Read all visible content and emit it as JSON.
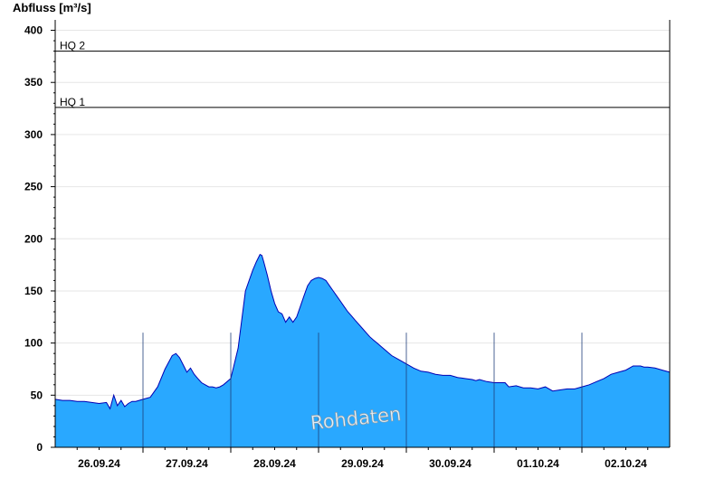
{
  "chart_data": {
    "type": "area",
    "ylabel": "Abfluss [m³/s]",
    "xlabel": "",
    "ylim": [
      0,
      410
    ],
    "yticks": [
      0,
      50,
      100,
      150,
      200,
      250,
      300,
      350,
      400
    ],
    "x_range_days": [
      "25.09.24 12:00",
      "02.10.24 12:00"
    ],
    "xtick_labels": [
      "26.09.24",
      "27.09.24",
      "28.09.24",
      "29.09.24",
      "30.09.24",
      "01.10.24",
      "02.10.24"
    ],
    "grid": true,
    "reference_lines": [
      {
        "label": "HQ 1",
        "value": 326
      },
      {
        "label": "HQ 2",
        "value": 380
      }
    ],
    "watermark": "Rohdaten",
    "fill_color": "#29a8ff",
    "line_color": "#0000b4",
    "series": [
      {
        "x_hours_from_25.09.24_12:00": [
          0,
          2,
          4,
          6,
          8,
          10,
          12,
          14,
          15,
          16,
          17,
          18,
          19,
          20,
          21,
          22,
          24,
          26,
          28,
          30,
          32,
          33,
          34,
          35,
          36,
          37,
          38,
          39,
          40,
          41,
          42,
          43,
          44,
          45,
          46,
          48,
          50,
          52,
          54,
          55,
          56,
          56.5,
          57,
          58,
          59,
          60,
          61,
          62,
          63,
          64,
          65,
          66,
          67,
          68,
          69,
          70,
          71,
          72,
          73,
          74,
          75,
          76,
          77,
          78,
          79,
          80,
          81,
          82,
          83,
          84,
          85,
          86,
          87,
          88,
          89,
          90,
          92,
          94,
          96,
          98,
          100,
          102,
          104,
          106,
          108,
          110,
          112,
          114,
          115,
          116,
          118,
          120,
          122,
          123,
          124,
          126,
          128,
          130,
          132,
          134,
          136,
          138,
          140,
          142,
          144,
          146,
          148,
          150,
          152,
          154,
          156,
          158,
          160,
          161,
          162,
          164,
          166,
          168
        ],
        "y": [
          46,
          45,
          45,
          44,
          44,
          43,
          42,
          43,
          37,
          50,
          40,
          45,
          39,
          42,
          44,
          44,
          46,
          48,
          58,
          75,
          88,
          90,
          86,
          79,
          72,
          76,
          70,
          66,
          62,
          60,
          58,
          58,
          57,
          58,
          60,
          66,
          95,
          150,
          170,
          178,
          185,
          184,
          178,
          165,
          150,
          138,
          130,
          128,
          120,
          125,
          120,
          125,
          135,
          145,
          155,
          160,
          162,
          163,
          162,
          160,
          155,
          150,
          145,
          140,
          135,
          130,
          126,
          122,
          118,
          114,
          110,
          106,
          103,
          100,
          97,
          94,
          88,
          84,
          80,
          76,
          73,
          72,
          70,
          69,
          69,
          67,
          66,
          65,
          64,
          65,
          63,
          62,
          62,
          62,
          58,
          59,
          57,
          57,
          56,
          58,
          54,
          55,
          56,
          56,
          58,
          60,
          63,
          66,
          70,
          72,
          74,
          78,
          78,
          77,
          77,
          76,
          74,
          72
        ]
      }
    ]
  }
}
